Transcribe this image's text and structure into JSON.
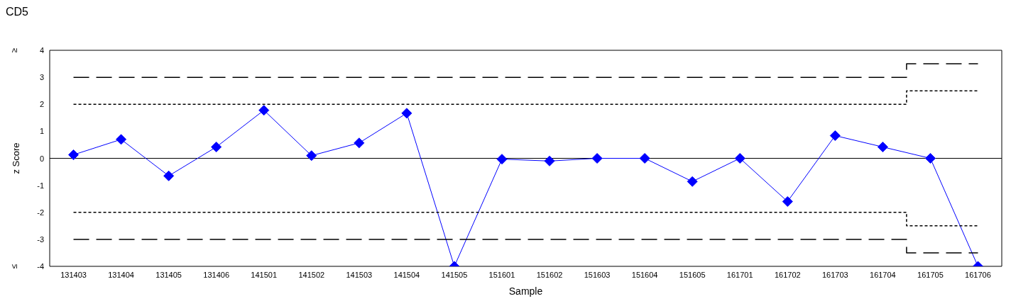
{
  "chart_data": {
    "type": "line",
    "title": "CD5",
    "xlabel": "Sample",
    "ylabel": "z Score",
    "categories": [
      "131403",
      "131404",
      "131405",
      "131406",
      "141501",
      "141502",
      "141503",
      "141504",
      "141505",
      "151601",
      "151602",
      "151603",
      "151604",
      "151605",
      "161701",
      "161702",
      "161703",
      "161704",
      "161705",
      "161706"
    ],
    "series": [
      {
        "color": "#0000ff",
        "marker": "diamond",
        "line_style": "solid",
        "values": [
          0.13,
          0.7,
          -0.65,
          0.42,
          1.78,
          0.1,
          0.57,
          1.67,
          -4,
          -0.03,
          -0.1,
          0,
          0,
          -0.86,
          0,
          -1.6,
          0.84,
          0.42,
          0,
          -4
        ]
      },
      {
        "type": "step",
        "color": "#000000",
        "marker": "none",
        "line_style": "dashed",
        "values": [
          3,
          3,
          3,
          3,
          3,
          3,
          3,
          3,
          3,
          3,
          3,
          3,
          3,
          3,
          3,
          3,
          3,
          3,
          3.5,
          3.5
        ]
      },
      {
        "type": "step",
        "color": "#000000",
        "marker": "none",
        "line_style": "dotted",
        "values": [
          2,
          2,
          2,
          2,
          2,
          2,
          2,
          2,
          2,
          2,
          2,
          2,
          2,
          2,
          2,
          2,
          2,
          2,
          2.5,
          2.5
        ]
      },
      {
        "type": "step",
        "color": "#000000",
        "marker": "none",
        "line_style": "dotted",
        "values": [
          -2,
          -2,
          -2,
          -2,
          -2,
          -2,
          -2,
          -2,
          -2,
          -2,
          -2,
          -2,
          -2,
          -2,
          -2,
          -2,
          -2,
          -2,
          -2.5,
          -2.5
        ]
      },
      {
        "type": "step",
        "color": "#000000",
        "marker": "none",
        "line_style": "dashed",
        "values": [
          -3,
          -3,
          -3,
          -3,
          -3,
          -3,
          -3,
          -3,
          -3,
          -3,
          -3,
          -3,
          -3,
          -3,
          -3,
          -3,
          -3,
          -3,
          -3.5,
          -3.5
        ]
      }
    ],
    "ylim": [
      -4,
      4
    ],
    "yticks": [
      -4,
      -3,
      -2,
      -1,
      0,
      1,
      2,
      3,
      4
    ],
    "ref_lines": [
      {
        "axis": "y",
        "value": 0,
        "color": "#000000",
        "line_style": "solid"
      }
    ],
    "annotations": [
      "≥",
      "≤"
    ],
    "grid": false
  }
}
